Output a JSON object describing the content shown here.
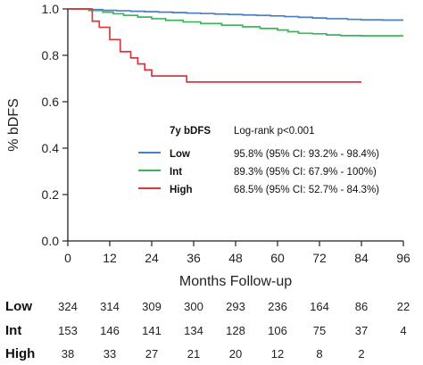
{
  "chart_data": {
    "type": "line",
    "step": true,
    "ylabel": "% bDFS",
    "xlabel": "Months Follow-up",
    "xlim": [
      0,
      96
    ],
    "ylim": [
      0.0,
      1.0
    ],
    "xticks": [
      0,
      12,
      24,
      36,
      48,
      60,
      72,
      84,
      96
    ],
    "yticks": [
      0.0,
      0.2,
      0.4,
      0.6,
      0.8,
      1.0
    ],
    "ytick_labels": [
      "0.0",
      "0.2",
      "0.4",
      "0.6",
      "0.8",
      "1.0"
    ],
    "grid": false,
    "legend": {
      "position": "center-right",
      "header": "7y bDFS",
      "header_note": "Log-rank p<0.001",
      "entries": [
        {
          "name": "Low",
          "text": "95.8% (95% CI: 93.2% - 98.4%)"
        },
        {
          "name": "Int",
          "text": "89.3% (95% CI: 67.9% - 100%)"
        },
        {
          "name": "High",
          "text": "68.5% (95% CI: 52.7% - 84.3%)"
        }
      ]
    },
    "series": [
      {
        "name": "Low",
        "color": "#4a7fc6",
        "x": [
          0,
          6,
          10,
          14,
          18,
          22,
          26,
          30,
          34,
          38,
          42,
          46,
          50,
          54,
          58,
          62,
          66,
          70,
          74,
          80,
          84,
          90,
          96
        ],
        "y": [
          1.0,
          0.997,
          0.994,
          0.992,
          0.99,
          0.988,
          0.986,
          0.984,
          0.982,
          0.98,
          0.978,
          0.976,
          0.974,
          0.972,
          0.97,
          0.967,
          0.964,
          0.961,
          0.958,
          0.955,
          0.953,
          0.952,
          0.952
        ]
      },
      {
        "name": "Int",
        "color": "#3bb55d",
        "x": [
          0,
          6,
          10,
          13,
          16,
          20,
          24,
          28,
          33,
          38,
          44,
          50,
          55,
          60,
          63,
          66,
          70,
          74,
          78,
          84,
          90,
          96
        ],
        "y": [
          1.0,
          0.993,
          0.986,
          0.979,
          0.972,
          0.965,
          0.958,
          0.951,
          0.944,
          0.937,
          0.93,
          0.923,
          0.916,
          0.909,
          0.902,
          0.895,
          0.893,
          0.888,
          0.885,
          0.884,
          0.884,
          0.884
        ]
      },
      {
        "name": "High",
        "color": "#d9393c",
        "x": [
          0,
          7,
          9,
          12,
          15,
          18,
          20,
          22,
          24,
          34,
          84
        ],
        "y": [
          1.0,
          0.947,
          0.921,
          0.868,
          0.816,
          0.789,
          0.763,
          0.737,
          0.711,
          0.685,
          0.685
        ]
      }
    ]
  },
  "risk_table": {
    "columns": [
      0,
      12,
      24,
      36,
      48,
      60,
      72,
      84,
      96
    ],
    "rows": [
      {
        "label": "Low",
        "values": [
          "324",
          "314",
          "309",
          "300",
          "293",
          "236",
          "164",
          "86",
          "22"
        ]
      },
      {
        "label": "Int",
        "values": [
          "153",
          "146",
          "141",
          "134",
          "128",
          "106",
          "75",
          "37",
          "4"
        ]
      },
      {
        "label": "High",
        "values": [
          "38",
          "33",
          "27",
          "21",
          "20",
          "12",
          "8",
          "2",
          ""
        ]
      }
    ]
  }
}
